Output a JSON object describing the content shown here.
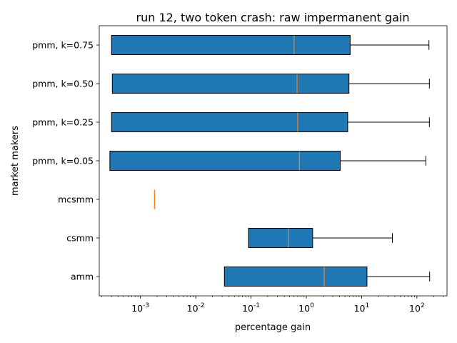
{
  "chart_data": {
    "type": "boxplot",
    "orientation": "horizontal",
    "title": "run 12, two token crash: raw impermanent gain",
    "xlabel": "percentage gain",
    "ylabel": "market makers",
    "xscale": "log",
    "xlim": [
      0.00018,
      350
    ],
    "xticks": [
      {
        "base": "10",
        "exp": "-3",
        "value": 0.001
      },
      {
        "base": "10",
        "exp": "-2",
        "value": 0.01
      },
      {
        "base": "10",
        "exp": "-1",
        "value": 0.1
      },
      {
        "base": "10",
        "exp": "0",
        "value": 1
      },
      {
        "base": "10",
        "exp": "1",
        "value": 10
      },
      {
        "base": "10",
        "exp": "2",
        "value": 100
      }
    ],
    "grid": false,
    "colors": {
      "box_fill": "#1f77b4",
      "median": "#ff7f0e",
      "edge": "#000000"
    },
    "categories": [
      "pmm, k=0.75",
      "pmm, k=0.50",
      "pmm, k=0.25",
      "pmm, k=0.05",
      "mcsmm",
      "csmm",
      "amm"
    ],
    "boxes": [
      {
        "q1": 0.0003,
        "median": 0.6,
        "q3": 6.2,
        "whisker_low": 0.0003,
        "whisker_high": 165
      },
      {
        "q1": 0.00031,
        "median": 0.68,
        "q3": 5.9,
        "whisker_low": 0.00031,
        "whisker_high": 168
      },
      {
        "q1": 0.0003,
        "median": 0.7,
        "q3": 5.6,
        "whisker_low": 0.0003,
        "whisker_high": 168
      },
      {
        "q1": 0.00028,
        "median": 0.75,
        "q3": 4.1,
        "whisker_low": 0.00028,
        "whisker_high": 145
      },
      {
        "q1": 0.0018,
        "median": 0.0018,
        "q3": 0.0018,
        "whisker_low": 0.0018,
        "whisker_high": 0.0018
      },
      {
        "q1": 0.09,
        "median": 0.47,
        "q3": 1.3,
        "whisker_low": 0.09,
        "whisker_high": 36
      },
      {
        "q1": 0.033,
        "median": 2.1,
        "q3": 12.5,
        "whisker_low": 0.033,
        "whisker_high": 170
      }
    ]
  }
}
